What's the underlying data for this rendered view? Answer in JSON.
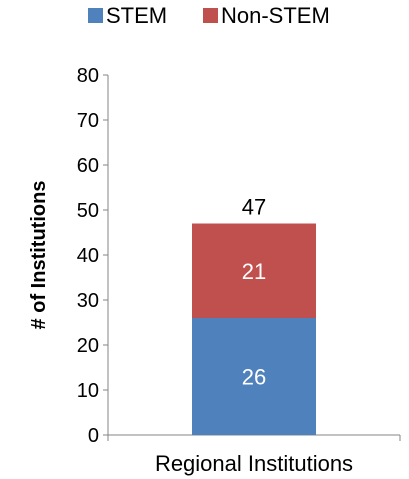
{
  "chart_data": {
    "type": "bar",
    "stacked": true,
    "categories": [
      "Regional Institutions"
    ],
    "series": [
      {
        "name": "STEM",
        "values": [
          26
        ],
        "color": "#4F81BD",
        "data_labels": [
          "26"
        ]
      },
      {
        "name": "Non-STEM",
        "values": [
          21
        ],
        "color": "#C0504D",
        "data_labels": [
          "21"
        ]
      }
    ],
    "totals": [
      47
    ],
    "total_labels": [
      "47"
    ],
    "ylabel": "# of Institutions",
    "ylim": [
      0,
      80
    ],
    "yticks": [
      "0",
      "10",
      "20",
      "30",
      "40",
      "50",
      "60",
      "70",
      "80"
    ],
    "legend": "top",
    "grid": false
  }
}
